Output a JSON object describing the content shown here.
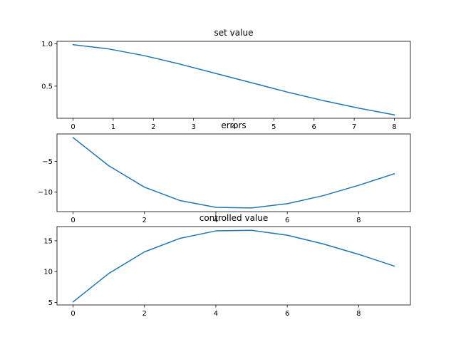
{
  "chart_data": [
    {
      "type": "line",
      "title": "set value",
      "xlabel": "",
      "ylabel": "",
      "x": [
        0,
        0.888889,
        1.777778,
        2.666667,
        3.555556,
        4.444444,
        5.333333,
        6.222222,
        7.111111,
        8.0
      ],
      "series": [
        {
          "values": [
            0.99,
            0.94,
            0.86,
            0.76,
            0.65,
            0.54,
            0.43,
            0.33,
            0.24,
            0.16
          ]
        }
      ],
      "xlim": [
        -0.4,
        8.4
      ],
      "ylim": [
        0.12,
        1.03
      ],
      "xticks": [
        0,
        1,
        2,
        3,
        4,
        5,
        6,
        7,
        8
      ],
      "yticks": [
        0.5,
        1.0
      ],
      "ytick_labels": [
        "0.5",
        "1.0"
      ],
      "grid": false,
      "color": "#1f77b4"
    },
    {
      "type": "line",
      "title": "errors",
      "xlabel": "",
      "ylabel": "",
      "x": [
        0,
        1,
        2,
        3,
        4,
        5,
        6,
        7,
        8,
        9
      ],
      "series": [
        {
          "values": [
            -1.1,
            -5.7,
            -9.2,
            -11.4,
            -12.5,
            -12.6,
            -11.9,
            -10.6,
            -8.9,
            -7.0
          ]
        }
      ],
      "xlim": [
        -0.45,
        9.45
      ],
      "ylim": [
        -13.2,
        -0.5
      ],
      "xticks": [
        0,
        2,
        4,
        6,
        8
      ],
      "yticks": [
        -5,
        -10
      ],
      "ytick_labels": [
        "−5",
        "−10"
      ],
      "grid": false,
      "color": "#1f77b4"
    },
    {
      "type": "line",
      "title": "controlled value",
      "xlabel": "",
      "ylabel": "",
      "x": [
        0,
        1,
        2,
        3,
        4,
        5,
        6,
        7,
        8,
        9
      ],
      "series": [
        {
          "values": [
            5.1,
            9.7,
            13.2,
            15.4,
            16.6,
            16.7,
            15.9,
            14.5,
            12.8,
            10.9
          ]
        }
      ],
      "xlim": [
        -0.45,
        9.45
      ],
      "ylim": [
        4.6,
        17.3
      ],
      "xticks": [
        0,
        2,
        4,
        6,
        8
      ],
      "yticks": [
        5,
        10,
        15
      ],
      "ytick_labels": [
        "5",
        "10",
        "15"
      ],
      "grid": false,
      "color": "#1f77b4"
    }
  ]
}
